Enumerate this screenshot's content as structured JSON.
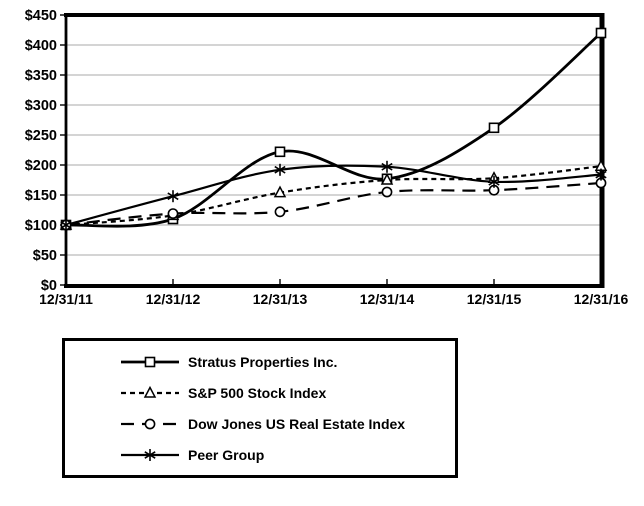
{
  "chart_data": {
    "type": "line",
    "title": "",
    "smooth": true,
    "grid": "horizontal",
    "legend_position": "bottom-left",
    "line_color": "#000000",
    "grid_color": "#a9a9a9",
    "background_color": "#ffffff",
    "categories": [
      "12/31/11",
      "12/31/12",
      "12/31/13",
      "12/31/14",
      "12/31/15",
      "12/31/16"
    ],
    "series": [
      {
        "name": "Stratus Properties Inc.",
        "values": [
          100,
          110,
          222,
          177,
          262,
          420
        ],
        "line": "solid",
        "marker": "square",
        "thickness": "thick"
      },
      {
        "name": "S&P 500 Stock Index",
        "values": [
          100,
          116,
          154,
          175,
          178,
          198
        ],
        "line": "short-dash",
        "marker": "triangle",
        "thickness": "normal"
      },
      {
        "name": "Dow Jones US Real Estate Index",
        "values": [
          100,
          119,
          122,
          155,
          158,
          170
        ],
        "line": "long-dash",
        "marker": "circle",
        "thickness": "normal"
      },
      {
        "name": "Peer Group",
        "values": [
          100,
          148,
          192,
          197,
          172,
          184
        ],
        "line": "solid",
        "marker": "asterisk",
        "thickness": "normal"
      }
    ],
    "y_axis": {
      "min": 0,
      "max": 450,
      "step": 50,
      "tick_labels": [
        "$0",
        "$50",
        "$100",
        "$150",
        "$200",
        "$250",
        "$300",
        "$350",
        "$400",
        "$450"
      ]
    },
    "x_axis": {
      "tick_labels": [
        "12/31/11",
        "12/31/12",
        "12/31/13",
        "12/31/14",
        "12/31/15",
        "12/31/16"
      ]
    }
  }
}
